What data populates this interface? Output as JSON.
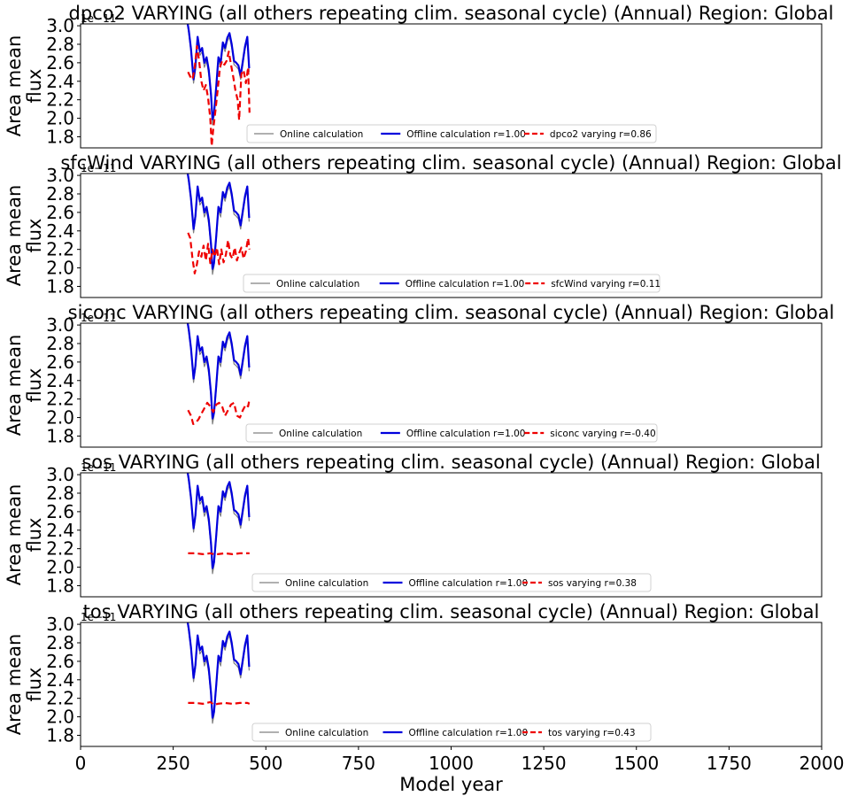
{
  "colors": {
    "online": "#808080",
    "offline": "#0000dd",
    "varying": "#ee0000"
  },
  "chart_data": [
    {
      "type": "line",
      "title": "dpco2 VARYING (all others repeating clim. seasonal cycle) (Annual) Region: Global",
      "ylabel": "Area mean\nflux",
      "xlabel": "",
      "offset_text": "1e−11",
      "xlim": [
        0,
        2000
      ],
      "ylim": [
        1.68,
        3.02
      ],
      "xticks": [],
      "yticks": [
        "1.8",
        "2.0",
        "2.2",
        "2.4",
        "2.6",
        "2.8",
        "3.0"
      ],
      "legend": [
        "Online calculation",
        "Offline calculation r=1.00",
        "dpco2 varying r=0.86"
      ],
      "legend_loc": "lower center",
      "series": [
        {
          "name": "Online calculation",
          "x": [
            285,
            292,
            298,
            305,
            310,
            316,
            322,
            328,
            334,
            340,
            346,
            352,
            356,
            360,
            366,
            372,
            378,
            384,
            390,
            396,
            402,
            408,
            414,
            420,
            426,
            432,
            438,
            444,
            450,
            455
          ],
          "y": [
            3.1,
            2.92,
            2.72,
            2.38,
            2.52,
            2.85,
            2.68,
            2.72,
            2.55,
            2.62,
            2.47,
            2.22,
            1.93,
            2.02,
            2.3,
            2.62,
            2.55,
            2.78,
            2.72,
            2.83,
            2.88,
            2.76,
            2.58,
            2.56,
            2.53,
            2.42,
            2.58,
            2.75,
            2.84,
            2.5
          ]
        },
        {
          "name": "Offline calculation r=1.00",
          "x": [
            285,
            292,
            298,
            305,
            310,
            316,
            322,
            328,
            334,
            340,
            346,
            352,
            356,
            360,
            366,
            372,
            378,
            384,
            390,
            396,
            402,
            408,
            414,
            420,
            426,
            432,
            438,
            444,
            450,
            455
          ],
          "y": [
            3.12,
            2.95,
            2.75,
            2.42,
            2.56,
            2.88,
            2.72,
            2.76,
            2.6,
            2.66,
            2.52,
            2.26,
            1.99,
            2.05,
            2.34,
            2.66,
            2.6,
            2.82,
            2.76,
            2.87,
            2.92,
            2.8,
            2.62,
            2.6,
            2.57,
            2.46,
            2.62,
            2.78,
            2.88,
            2.54
          ]
        },
        {
          "name": "dpco2 varying r=0.86",
          "x": [
            290,
            296,
            302,
            308,
            314,
            320,
            326,
            332,
            338,
            344,
            350,
            354,
            358,
            364,
            370,
            376,
            382,
            388,
            394,
            400,
            406,
            412,
            418,
            424,
            428,
            434,
            440,
            446,
            452,
            456
          ],
          "y": [
            2.5,
            2.45,
            2.42,
            2.55,
            2.78,
            2.62,
            2.4,
            2.3,
            2.36,
            2.22,
            2.0,
            1.7,
            1.88,
            2.08,
            2.3,
            2.55,
            2.62,
            2.58,
            2.62,
            2.72,
            2.58,
            2.45,
            2.3,
            2.2,
            1.98,
            2.48,
            2.52,
            2.38,
            2.55,
            2.06
          ]
        }
      ]
    },
    {
      "type": "line",
      "title": "sfcWind VARYING (all others repeating clim. seasonal cycle) (Annual) Region: Global",
      "ylabel": "Area mean\nflux",
      "xlabel": "",
      "offset_text": "1e−11",
      "xlim": [
        0,
        2000
      ],
      "ylim": [
        1.68,
        3.02
      ],
      "xticks": [],
      "yticks": [
        "1.8",
        "2.0",
        "2.2",
        "2.4",
        "2.6",
        "2.8",
        "3.0"
      ],
      "legend": [
        "Online calculation",
        "Offline calculation r=1.00",
        "sfcWind varying r=0.11"
      ],
      "legend_loc": "lower center",
      "series": [
        {
          "name": "Online calculation",
          "x": [
            285,
            292,
            298,
            305,
            310,
            316,
            322,
            328,
            334,
            340,
            346,
            352,
            356,
            360,
            366,
            372,
            378,
            384,
            390,
            396,
            402,
            408,
            414,
            420,
            426,
            432,
            438,
            444,
            450,
            455
          ],
          "y": [
            3.1,
            2.92,
            2.72,
            2.38,
            2.52,
            2.85,
            2.68,
            2.72,
            2.55,
            2.62,
            2.47,
            2.22,
            1.93,
            2.02,
            2.3,
            2.62,
            2.55,
            2.78,
            2.72,
            2.83,
            2.88,
            2.76,
            2.58,
            2.56,
            2.53,
            2.42,
            2.58,
            2.75,
            2.84,
            2.5
          ]
        },
        {
          "name": "Offline calculation r=1.00",
          "x": [
            285,
            292,
            298,
            305,
            310,
            316,
            322,
            328,
            334,
            340,
            346,
            352,
            356,
            360,
            366,
            372,
            378,
            384,
            390,
            396,
            402,
            408,
            414,
            420,
            426,
            432,
            438,
            444,
            450,
            455
          ],
          "y": [
            3.12,
            2.95,
            2.75,
            2.42,
            2.56,
            2.88,
            2.72,
            2.76,
            2.6,
            2.66,
            2.52,
            2.26,
            1.99,
            2.05,
            2.34,
            2.66,
            2.6,
            2.82,
            2.76,
            2.87,
            2.92,
            2.8,
            2.62,
            2.6,
            2.57,
            2.46,
            2.62,
            2.78,
            2.88,
            2.54
          ]
        },
        {
          "name": "sfcWind varying r=0.11",
          "x": [
            290,
            296,
            302,
            308,
            314,
            320,
            326,
            332,
            338,
            344,
            350,
            356,
            362,
            368,
            374,
            380,
            386,
            392,
            398,
            404,
            410,
            416,
            422,
            428,
            434,
            440,
            446,
            452,
            456
          ],
          "y": [
            2.38,
            2.32,
            2.1,
            1.94,
            2.04,
            2.18,
            2.12,
            2.24,
            2.08,
            2.26,
            2.05,
            2.2,
            2.12,
            2.22,
            2.04,
            2.2,
            2.06,
            2.14,
            2.3,
            2.14,
            2.1,
            2.22,
            2.08,
            2.16,
            2.22,
            2.1,
            2.18,
            2.32,
            2.2
          ]
        }
      ]
    },
    {
      "type": "line",
      "title": "siconc VARYING (all others repeating clim. seasonal cycle) (Annual) Region: Global",
      "ylabel": "Area mean\nflux",
      "xlabel": "",
      "offset_text": "1e−11",
      "xlim": [
        0,
        2000
      ],
      "ylim": [
        1.68,
        3.02
      ],
      "xticks": [],
      "yticks": [
        "1.8",
        "2.0",
        "2.2",
        "2.4",
        "2.6",
        "2.8",
        "3.0"
      ],
      "legend": [
        "Online calculation",
        "Offline calculation r=1.00",
        "siconc varying r=-0.40"
      ],
      "legend_loc": "lower center",
      "series": [
        {
          "name": "Online calculation",
          "x": [
            285,
            292,
            298,
            305,
            310,
            316,
            322,
            328,
            334,
            340,
            346,
            352,
            356,
            360,
            366,
            372,
            378,
            384,
            390,
            396,
            402,
            408,
            414,
            420,
            426,
            432,
            438,
            444,
            450,
            455
          ],
          "y": [
            3.1,
            2.92,
            2.72,
            2.38,
            2.52,
            2.85,
            2.68,
            2.72,
            2.55,
            2.62,
            2.47,
            2.22,
            1.93,
            2.02,
            2.3,
            2.62,
            2.55,
            2.78,
            2.72,
            2.83,
            2.88,
            2.76,
            2.58,
            2.56,
            2.53,
            2.42,
            2.58,
            2.75,
            2.84,
            2.5
          ]
        },
        {
          "name": "Offline calculation r=1.00",
          "x": [
            285,
            292,
            298,
            305,
            310,
            316,
            322,
            328,
            334,
            340,
            346,
            352,
            356,
            360,
            366,
            372,
            378,
            384,
            390,
            396,
            402,
            408,
            414,
            420,
            426,
            432,
            438,
            444,
            450,
            455
          ],
          "y": [
            3.12,
            2.95,
            2.75,
            2.42,
            2.56,
            2.88,
            2.72,
            2.76,
            2.6,
            2.66,
            2.52,
            2.26,
            1.99,
            2.05,
            2.34,
            2.66,
            2.6,
            2.82,
            2.76,
            2.87,
            2.92,
            2.8,
            2.62,
            2.6,
            2.57,
            2.46,
            2.62,
            2.78,
            2.88,
            2.54
          ]
        },
        {
          "name": "siconc varying r=-0.40",
          "x": [
            290,
            298,
            304,
            310,
            318,
            326,
            334,
            342,
            350,
            358,
            366,
            374,
            382,
            390,
            398,
            406,
            414,
            422,
            430,
            438,
            446,
            452,
            456
          ],
          "y": [
            2.08,
            2.02,
            1.93,
            1.94,
            1.98,
            2.04,
            2.1,
            2.16,
            2.12,
            2.06,
            2.14,
            2.16,
            2.12,
            2.02,
            2.08,
            2.14,
            2.16,
            2.02,
            2.0,
            2.08,
            2.14,
            2.12,
            2.2
          ]
        }
      ]
    },
    {
      "type": "line",
      "title": "sos VARYING (all others repeating clim. seasonal cycle) (Annual) Region: Global",
      "ylabel": "Area mean\nflux",
      "xlabel": "",
      "offset_text": "1e−11",
      "xlim": [
        0,
        2000
      ],
      "ylim": [
        1.68,
        3.02
      ],
      "xticks": [],
      "yticks": [
        "1.8",
        "2.0",
        "2.2",
        "2.4",
        "2.6",
        "2.8",
        "3.0"
      ],
      "legend": [
        "Online calculation",
        "Offline calculation r=1.00",
        "sos varying r=0.38"
      ],
      "legend_loc": "lower center",
      "series": [
        {
          "name": "Online calculation",
          "x": [
            285,
            292,
            298,
            305,
            310,
            316,
            322,
            328,
            334,
            340,
            346,
            352,
            356,
            360,
            366,
            372,
            378,
            384,
            390,
            396,
            402,
            408,
            414,
            420,
            426,
            432,
            438,
            444,
            450,
            455
          ],
          "y": [
            3.1,
            2.92,
            2.72,
            2.38,
            2.52,
            2.85,
            2.68,
            2.72,
            2.55,
            2.62,
            2.47,
            2.22,
            1.93,
            2.02,
            2.3,
            2.62,
            2.55,
            2.78,
            2.72,
            2.83,
            2.88,
            2.76,
            2.58,
            2.56,
            2.53,
            2.42,
            2.58,
            2.75,
            2.84,
            2.5
          ]
        },
        {
          "name": "Offline calculation r=1.00",
          "x": [
            285,
            292,
            298,
            305,
            310,
            316,
            322,
            328,
            334,
            340,
            346,
            352,
            356,
            360,
            366,
            372,
            378,
            384,
            390,
            396,
            402,
            408,
            414,
            420,
            426,
            432,
            438,
            444,
            450,
            455
          ],
          "y": [
            3.12,
            2.95,
            2.75,
            2.42,
            2.56,
            2.88,
            2.72,
            2.76,
            2.6,
            2.66,
            2.52,
            2.26,
            1.99,
            2.05,
            2.34,
            2.66,
            2.6,
            2.82,
            2.76,
            2.87,
            2.92,
            2.8,
            2.62,
            2.6,
            2.57,
            2.46,
            2.62,
            2.78,
            2.88,
            2.54
          ]
        },
        {
          "name": "sos varying r=0.38",
          "x": [
            290,
            310,
            330,
            350,
            360,
            370,
            390,
            410,
            430,
            450,
            456
          ],
          "y": [
            2.15,
            2.15,
            2.14,
            2.15,
            2.14,
            2.14,
            2.15,
            2.14,
            2.15,
            2.15,
            2.15
          ]
        }
      ]
    },
    {
      "type": "line",
      "title": "tos VARYING (all others repeating clim. seasonal cycle) (Annual) Region: Global",
      "ylabel": "Area mean\nflux",
      "xlabel": "Model year",
      "offset_text": "1e−11",
      "xlim": [
        0,
        2000
      ],
      "ylim": [
        1.68,
        3.02
      ],
      "xticks": [
        "0",
        "250",
        "500",
        "750",
        "1000",
        "1250",
        "1500",
        "1750",
        "2000"
      ],
      "yticks": [
        "1.8",
        "2.0",
        "2.2",
        "2.4",
        "2.6",
        "2.8",
        "3.0"
      ],
      "legend": [
        "Online calculation",
        "Offline calculation r=1.00",
        "tos varying r=0.43"
      ],
      "legend_loc": "lower center",
      "series": [
        {
          "name": "Online calculation",
          "x": [
            285,
            292,
            298,
            305,
            310,
            316,
            322,
            328,
            334,
            340,
            346,
            352,
            356,
            360,
            366,
            372,
            378,
            384,
            390,
            396,
            402,
            408,
            414,
            420,
            426,
            432,
            438,
            444,
            450,
            455
          ],
          "y": [
            3.1,
            2.92,
            2.72,
            2.38,
            2.52,
            2.85,
            2.68,
            2.72,
            2.55,
            2.62,
            2.47,
            2.22,
            1.93,
            2.02,
            2.3,
            2.62,
            2.55,
            2.78,
            2.72,
            2.83,
            2.88,
            2.76,
            2.58,
            2.56,
            2.53,
            2.42,
            2.58,
            2.75,
            2.84,
            2.5
          ]
        },
        {
          "name": "Offline calculation r=1.00",
          "x": [
            285,
            292,
            298,
            305,
            310,
            316,
            322,
            328,
            334,
            340,
            346,
            352,
            356,
            360,
            366,
            372,
            378,
            384,
            390,
            396,
            402,
            408,
            414,
            420,
            426,
            432,
            438,
            444,
            450,
            455
          ],
          "y": [
            3.12,
            2.95,
            2.75,
            2.42,
            2.56,
            2.88,
            2.72,
            2.76,
            2.6,
            2.66,
            2.52,
            2.26,
            1.99,
            2.05,
            2.34,
            2.66,
            2.6,
            2.82,
            2.76,
            2.87,
            2.92,
            2.8,
            2.62,
            2.6,
            2.57,
            2.46,
            2.62,
            2.78,
            2.88,
            2.54
          ]
        },
        {
          "name": "tos varying r=0.43",
          "x": [
            290,
            310,
            330,
            350,
            360,
            370,
            390,
            410,
            430,
            450,
            456
          ],
          "y": [
            2.15,
            2.15,
            2.14,
            2.16,
            2.13,
            2.14,
            2.15,
            2.14,
            2.15,
            2.15,
            2.14
          ]
        }
      ]
    }
  ]
}
